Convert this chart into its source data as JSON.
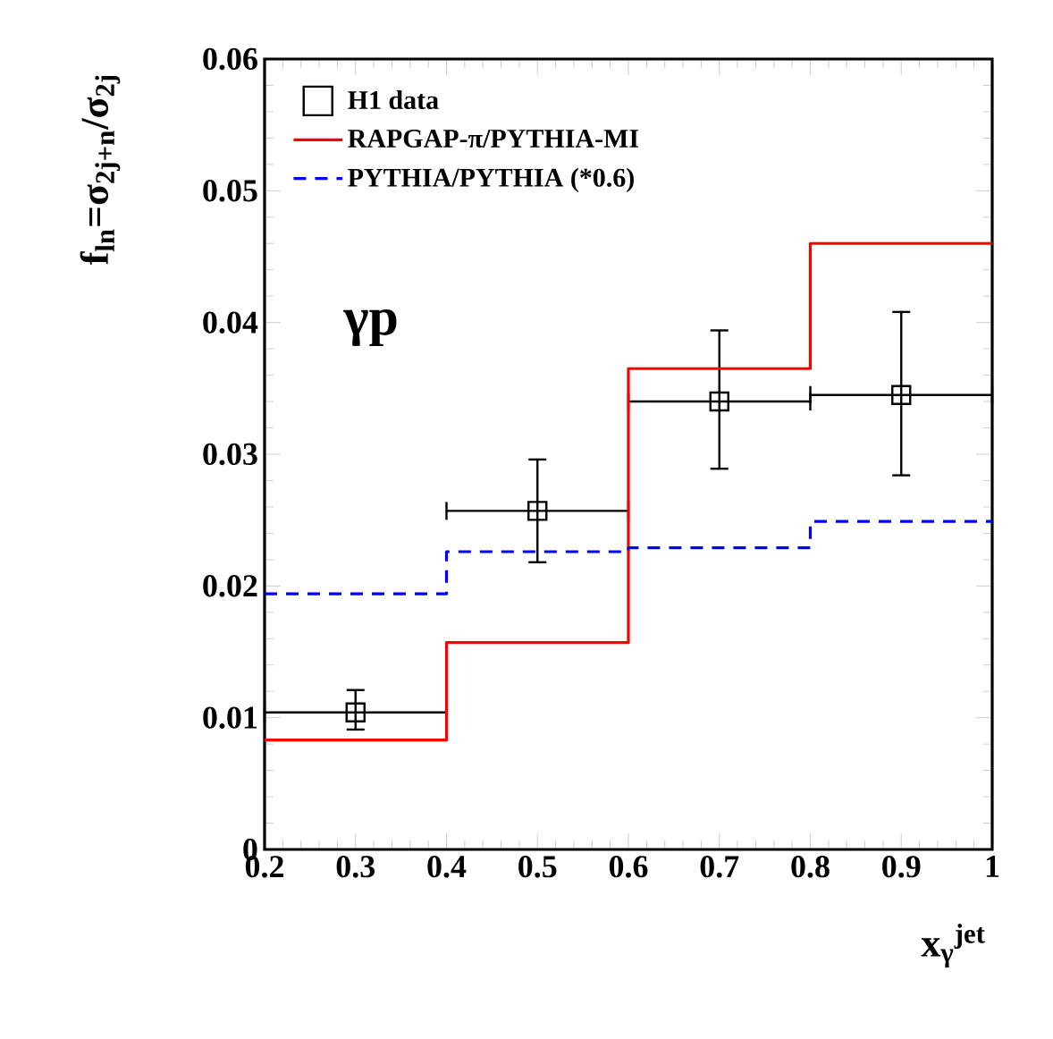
{
  "chart_data": {
    "type": "scatter",
    "xlabel": "x$_{γ}$$^{jet}$",
    "ylabel": "f$_{ln}$=σ$_{2j+n}$/σ$_{2j}$",
    "xlim": [
      0.2,
      1
    ],
    "ylim": [
      0,
      0.06
    ],
    "xticks": [
      0.2,
      0.3,
      0.4,
      0.5,
      0.6,
      0.7,
      0.8,
      0.9,
      1
    ],
    "yticks": [
      0,
      0.01,
      0.02,
      0.03,
      0.04,
      0.05,
      0.06
    ],
    "legend": "top left",
    "grid": false,
    "annotations": [
      "γp"
    ],
    "series": [
      {
        "name": "H1 data",
        "marker": "square",
        "color": "#000000",
        "x": [
          0.3,
          0.5,
          0.7,
          0.9
        ],
        "values": [
          0.0104,
          0.0257,
          0.034,
          0.0345
        ],
        "errors": [
          [
            0.0091,
            0.0121
          ],
          [
            0.0218,
            0.0296
          ],
          [
            0.0289,
            0.0394
          ],
          [
            0.0284,
            0.0408
          ]
        ],
        "xerrors": [
          0.1,
          0.1,
          0.1,
          0.1
        ]
      },
      {
        "name": "RAPGAP-π/PYTHIA-MI",
        "type": "step",
        "line_style": "solid",
        "color": "#ff0000",
        "x": [
          0.2,
          0.4,
          0.6,
          0.8,
          1
        ],
        "values": [
          0.0083,
          0.0157,
          0.0365,
          0.046,
          0.046
        ]
      },
      {
        "name": "PYTHIA/PYTHIA (*0.6)",
        "type": "step",
        "line_style": "dashed",
        "color": "#0000ff",
        "x": [
          0.2,
          0.4,
          0.6,
          0.8,
          1
        ],
        "values": [
          0.0194,
          0.0226,
          0.0229,
          0.0249,
          0.0249
        ]
      }
    ]
  }
}
